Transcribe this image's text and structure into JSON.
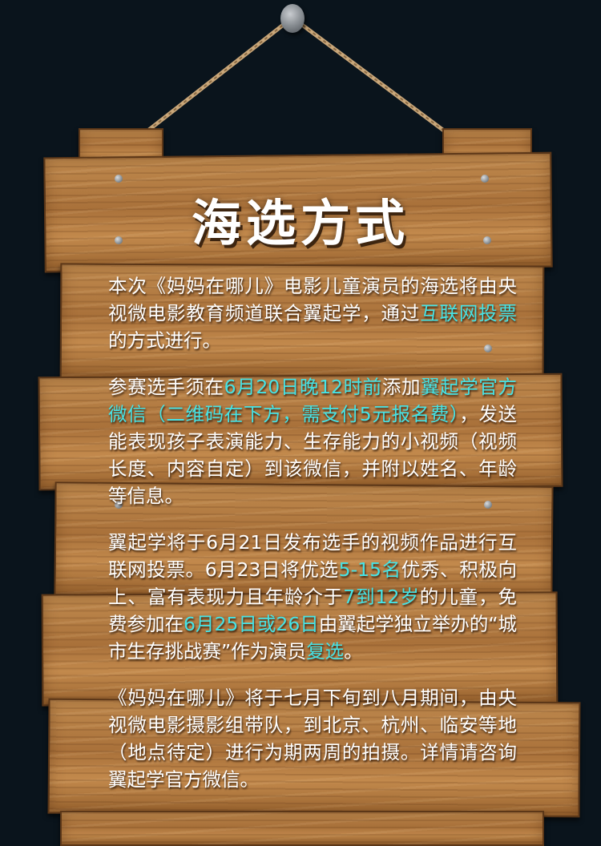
{
  "title": "海选方式",
  "paragraphs": [
    {
      "segments": [
        {
          "text": "本次《妈妈在哪儿》电影儿童演员的海选将由央视微电影教育频道联合翼起学，通过",
          "highlight": false
        },
        {
          "text": "互联网投票",
          "highlight": true
        },
        {
          "text": "的方式进行。",
          "highlight": false
        }
      ]
    },
    {
      "segments": [
        {
          "text": "参赛选手须在",
          "highlight": false
        },
        {
          "text": "6月20日晚12时前",
          "highlight": true
        },
        {
          "text": "添加",
          "highlight": false
        },
        {
          "text": "翼起学官方微信（二维码在下方，需支付5元报名费）",
          "highlight": true
        },
        {
          "text": "，发送能表现孩子表演能力、生存能力的小视频（视频长度、内容自定）到该微信，并附以姓名、年龄等信息。",
          "highlight": false
        }
      ]
    },
    {
      "segments": [
        {
          "text": "翼起学将于6月21日发布选手的视频作品进行互联网投票。6月23日将优选",
          "highlight": false
        },
        {
          "text": "5-15名",
          "highlight": true
        },
        {
          "text": "优秀、积极向上、富有表现力且年龄介于",
          "highlight": false
        },
        {
          "text": "7到12岁",
          "highlight": true
        },
        {
          "text": "的儿童，免费参加在",
          "highlight": false
        },
        {
          "text": "6月25日或26日",
          "highlight": true
        },
        {
          "text": "由翼起学独立举办的“城市生存挑战赛”作为演员",
          "highlight": false
        },
        {
          "text": "复选",
          "highlight": true
        },
        {
          "text": "。",
          "highlight": false
        }
      ]
    },
    {
      "segments": [
        {
          "text": "《妈妈在哪儿》将于七月下旬到八月期间，由央视微电影摄影组带队，到北京、杭州、临安等地（地点待定）进行为期两周的拍摄。详情请咨询翼起学官方微信。",
          "highlight": false
        }
      ]
    }
  ],
  "colors": {
    "background": "#0a141c",
    "highlight": "#46e3e6",
    "text": "#ffffff",
    "wood": "#b07a40"
  },
  "icons": [
    "nail-icon",
    "bolt-icon"
  ]
}
